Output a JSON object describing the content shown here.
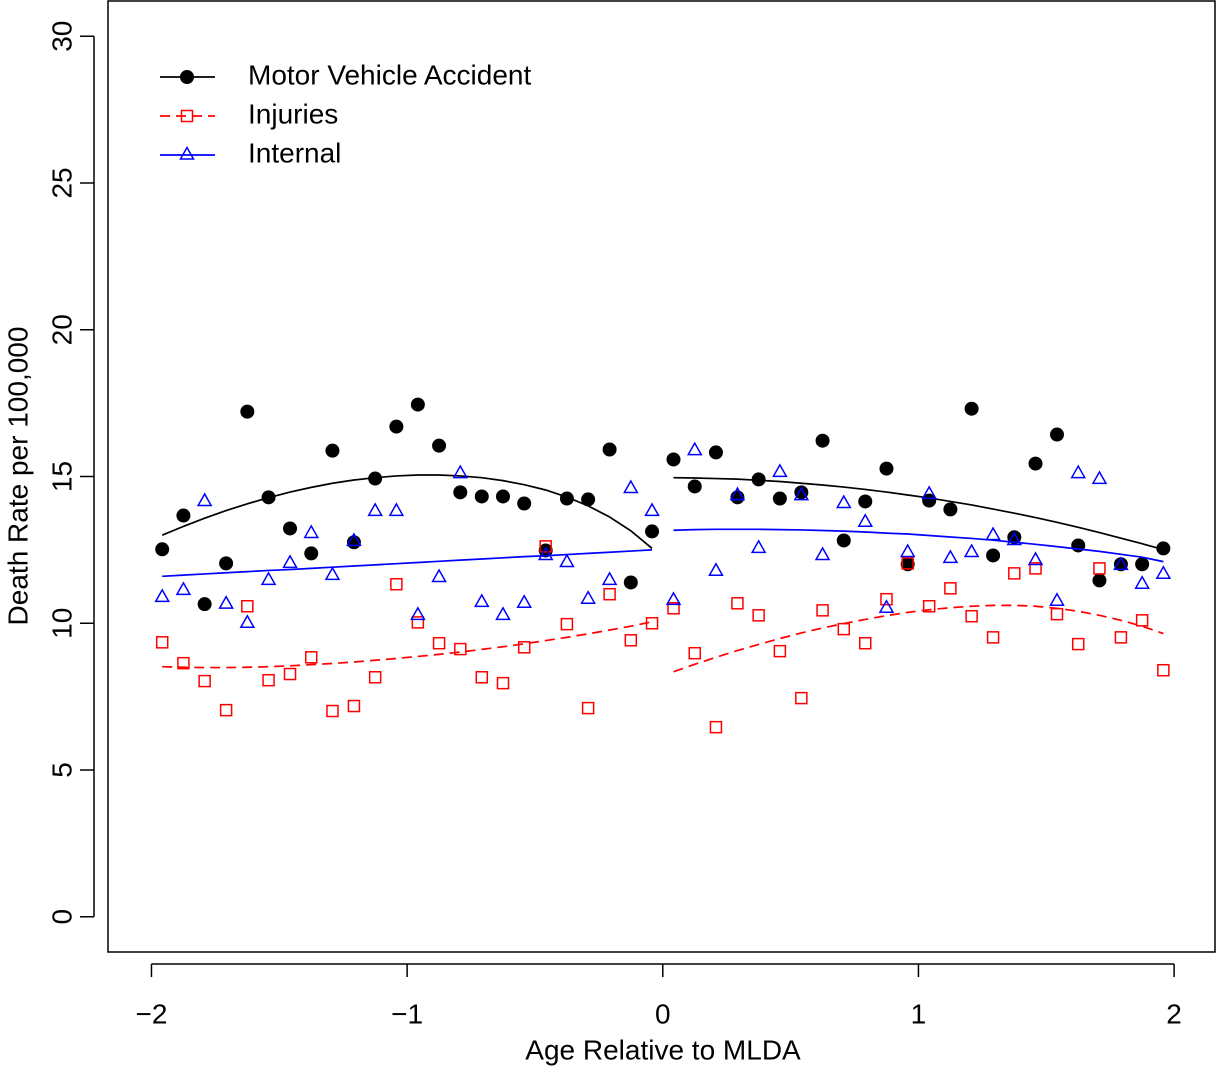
{
  "chart_data": {
    "type": "scatter",
    "xlabel": "Age Relative to MLDA",
    "ylabel": "Death Rate per 100,000",
    "xlim": [
      -2.17,
      2.16
    ],
    "ylim": [
      -1.2,
      31.2
    ],
    "xticks": [
      {
        "value": -2,
        "label": "−2"
      },
      {
        "value": -1,
        "label": "−1"
      },
      0,
      1,
      2
    ],
    "yticks": [
      0,
      5,
      10,
      15,
      20,
      25,
      30
    ],
    "legend": "topleft",
    "x": [
      -1.958,
      -1.875,
      -1.792,
      -1.708,
      -1.625,
      -1.542,
      -1.458,
      -1.375,
      -1.292,
      -1.208,
      -1.125,
      -1.042,
      -0.958,
      -0.875,
      -0.792,
      -0.708,
      -0.625,
      -0.542,
      -0.458,
      -0.375,
      -0.292,
      -0.208,
      -0.125,
      -0.042,
      0.042,
      0.125,
      0.208,
      0.292,
      0.375,
      0.458,
      0.542,
      0.625,
      0.708,
      0.792,
      0.875,
      0.958,
      1.042,
      1.125,
      1.208,
      1.292,
      1.375,
      1.458,
      1.542,
      1.625,
      1.708,
      1.792,
      1.875,
      1.958
    ],
    "series": [
      {
        "name": "Motor Vehicle Accident",
        "color": "#000000",
        "marker": "circle",
        "dash": "solid",
        "values": [
          12.52,
          13.67,
          10.65,
          12.04,
          17.21,
          14.29,
          13.23,
          12.38,
          15.88,
          12.76,
          14.93,
          16.7,
          17.45,
          16.05,
          14.46,
          14.32,
          14.32,
          14.08,
          12.48,
          14.25,
          14.22,
          15.92,
          11.39,
          13.13,
          15.58,
          14.66,
          15.82,
          14.29,
          14.9,
          14.25,
          14.46,
          16.22,
          12.82,
          14.15,
          15.27,
          12.01,
          14.18,
          13.88,
          17.31,
          12.31,
          12.93,
          15.44,
          16.43,
          12.65,
          11.46,
          12.01,
          12.01,
          12.55
        ],
        "fit": [
          13.0,
          13.3,
          13.58,
          13.84,
          14.07,
          14.28,
          14.47,
          14.63,
          14.77,
          14.88,
          14.96,
          15.02,
          15.05,
          15.05,
          15.02,
          14.96,
          14.86,
          14.72,
          14.54,
          14.3,
          14.0,
          13.62,
          13.15,
          12.55,
          14.96,
          14.95,
          14.93,
          14.91,
          14.87,
          14.83,
          14.77,
          14.71,
          14.64,
          14.56,
          14.47,
          14.37,
          14.27,
          14.15,
          14.03,
          13.89,
          13.75,
          13.6,
          13.44,
          13.27,
          13.09,
          12.9,
          12.71,
          12.51
        ]
      },
      {
        "name": "Injuries",
        "color": "#ff0000",
        "marker": "square",
        "dash": "dashed",
        "values": [
          9.35,
          8.64,
          8.03,
          7.04,
          10.58,
          8.06,
          8.27,
          8.84,
          7.01,
          7.18,
          8.16,
          11.33,
          10.03,
          9.32,
          9.12,
          8.16,
          7.96,
          9.18,
          12.62,
          9.97,
          7.11,
          10.99,
          9.42,
          10.0,
          10.51,
          8.98,
          6.46,
          10.68,
          10.27,
          9.05,
          7.45,
          10.44,
          9.8,
          9.32,
          10.82,
          12.04,
          10.58,
          11.19,
          10.24,
          9.52,
          11.7,
          11.87,
          10.31,
          9.29,
          11.87,
          9.52,
          10.1,
          8.4
        ],
        "fit": [
          8.52,
          8.5,
          8.49,
          8.49,
          8.5,
          8.52,
          8.55,
          8.59,
          8.63,
          8.68,
          8.74,
          8.8,
          8.87,
          8.94,
          9.02,
          9.11,
          9.2,
          9.3,
          9.41,
          9.52,
          9.64,
          9.77,
          9.9,
          10.05,
          8.35,
          8.6,
          8.84,
          9.07,
          9.28,
          9.48,
          9.67,
          9.84,
          9.99,
          10.13,
          10.26,
          10.37,
          10.46,
          10.53,
          10.58,
          10.61,
          10.61,
          10.58,
          10.51,
          10.41,
          10.27,
          10.1,
          9.9,
          9.65
        ]
      },
      {
        "name": "Internal",
        "color": "#0000ff",
        "marker": "triangle",
        "dash": "solid",
        "values": [
          10.88,
          11.12,
          14.15,
          10.65,
          10.0,
          11.46,
          12.04,
          13.06,
          11.63,
          12.79,
          13.81,
          13.81,
          10.27,
          11.56,
          15.1,
          10.71,
          10.27,
          10.68,
          12.31,
          12.07,
          10.82,
          11.46,
          14.59,
          13.81,
          10.78,
          15.88,
          11.77,
          14.35,
          12.55,
          15.14,
          14.35,
          12.31,
          14.08,
          13.44,
          10.51,
          12.41,
          14.39,
          12.21,
          12.41,
          12.99,
          12.82,
          12.14,
          10.75,
          15.1,
          14.9,
          11.97,
          11.33,
          11.67
        ],
        "fit": [
          11.6,
          11.64,
          11.68,
          11.72,
          11.76,
          11.8,
          11.83,
          11.87,
          11.91,
          11.95,
          11.99,
          12.03,
          12.07,
          12.11,
          12.15,
          12.19,
          12.23,
          12.27,
          12.3,
          12.34,
          12.38,
          12.42,
          12.46,
          12.5,
          13.17,
          13.19,
          13.2,
          13.2,
          13.2,
          13.19,
          13.18,
          13.16,
          13.14,
          13.11,
          13.07,
          13.04,
          12.99,
          12.94,
          12.89,
          12.83,
          12.76,
          12.69,
          12.61,
          12.53,
          12.45,
          12.35,
          12.25,
          12.1
        ]
      }
    ]
  }
}
